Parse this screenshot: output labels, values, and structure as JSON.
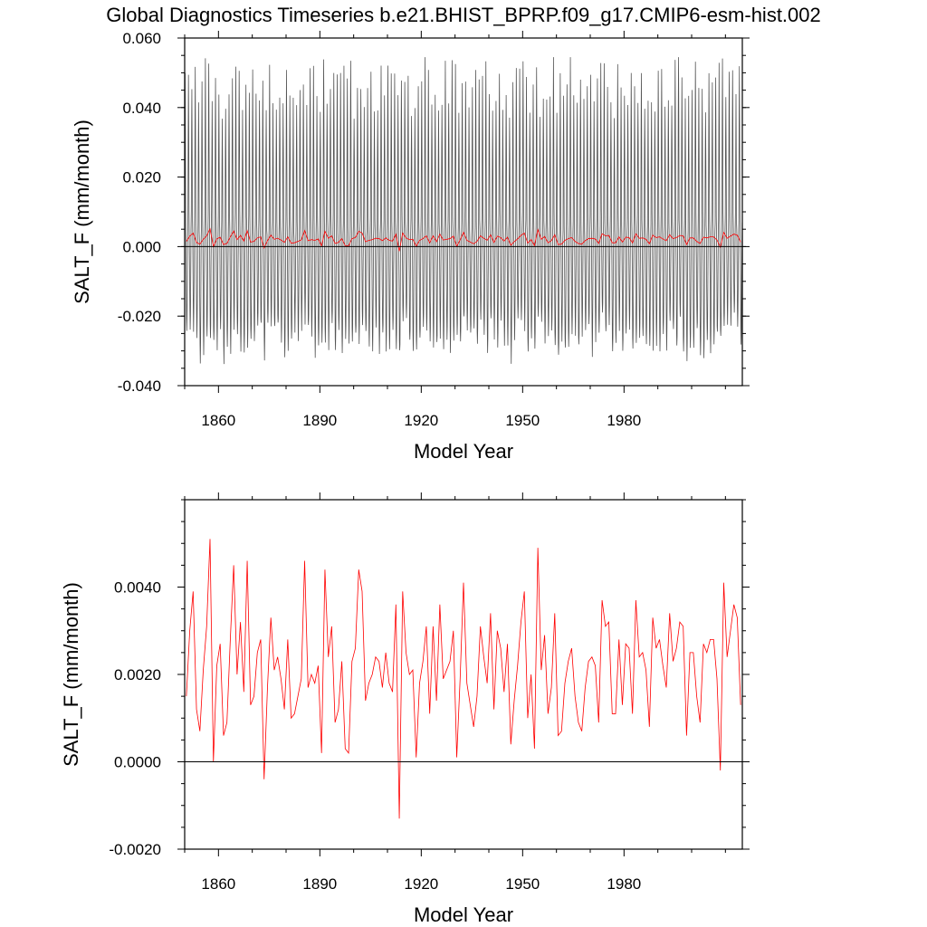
{
  "title": "Global Diagnostics Timeseries b.e21.BHIST_BPRP.f09_g17.CMIP6-esm-hist.002",
  "colors": {
    "monthly": "#555555",
    "annual": "#ff0000",
    "axis": "#000000",
    "zero_line": "#000000"
  },
  "chart_data": [
    {
      "type": "line",
      "name": "monthly-and-annual",
      "title": "Global Diagnostics Timeseries b.e21.BHIST_BPRP.f09_g17.CMIP6-esm-hist.002",
      "xlabel": "Model Year",
      "ylabel": "SALT_F (mm/month)",
      "xlim": [
        1850,
        2015
      ],
      "ylim": [
        -0.04,
        0.06
      ],
      "xticks": [
        1860,
        1890,
        1920,
        1950,
        1980
      ],
      "xtick_labels": [
        "1860",
        "1890",
        "1920",
        "1950",
        "1980"
      ],
      "yticks": [
        -0.04,
        -0.02,
        0.0,
        0.02,
        0.04,
        0.06
      ],
      "ytick_labels": [
        "-0.040",
        "-0.020",
        "0.000",
        "0.020",
        "0.040",
        "0.060"
      ],
      "reference_line": 0,
      "series": [
        {
          "name": "monthly",
          "color": "#555555",
          "description": "monthly means, seasonal cycle approx -0.03 to +0.05"
        },
        {
          "name": "annual",
          "color": "#ff0000",
          "description": "annual means (same as lower panel)"
        }
      ]
    },
    {
      "type": "line",
      "name": "annual-mean",
      "title": "",
      "xlabel": "Model Year",
      "ylabel": "SALT_F (mm/month)",
      "xlim": [
        1850,
        2015
      ],
      "ylim": [
        -0.002,
        0.006
      ],
      "xticks": [
        1860,
        1890,
        1920,
        1950,
        1980
      ],
      "xtick_labels": [
        "1860",
        "1890",
        "1920",
        "1950",
        "1980"
      ],
      "yticks": [
        -0.002,
        0.0,
        0.002,
        0.004
      ],
      "ytick_labels": [
        "-0.0020",
        "0.0000",
        "0.0020",
        "0.0040"
      ],
      "reference_line": 0,
      "series": [
        {
          "name": "annual",
          "color": "#ff0000",
          "x_start": 1850,
          "x_step": 1,
          "values": [
            0.0015,
            0.003,
            0.0039,
            0.0012,
            0.0007,
            0.0021,
            0.0031,
            0.0051,
            0.0,
            0.0022,
            0.0027,
            0.0006,
            0.0009,
            0.0028,
            0.0045,
            0.002,
            0.0032,
            0.0016,
            0.0046,
            0.0013,
            0.0015,
            0.0025,
            0.0028,
            -0.0004,
            0.0017,
            0.0033,
            0.0021,
            0.0024,
            0.0019,
            0.0012,
            0.0028,
            0.001,
            0.0011,
            0.0015,
            0.0019,
            0.0046,
            0.0017,
            0.002,
            0.0018,
            0.0022,
            0.0002,
            0.0044,
            0.0024,
            0.0031,
            0.0009,
            0.0012,
            0.0023,
            0.0003,
            0.0002,
            0.0023,
            0.0026,
            0.0044,
            0.0039,
            0.0014,
            0.0018,
            0.002,
            0.0024,
            0.0023,
            0.0017,
            0.0025,
            0.0018,
            0.0016,
            0.0036,
            -0.0013,
            0.0039,
            0.0025,
            0.002,
            0.0021,
            0.0001,
            0.0018,
            0.0023,
            0.0031,
            0.0011,
            0.0031,
            0.0014,
            0.0036,
            0.0019,
            0.0021,
            0.0023,
            0.003,
            0.0001,
            0.0019,
            0.0041,
            0.0018,
            0.0013,
            0.0008,
            0.0015,
            0.0031,
            0.0024,
            0.0018,
            0.0034,
            0.0012,
            0.003,
            0.0026,
            0.0016,
            0.0027,
            0.0004,
            0.0014,
            0.0022,
            0.0032,
            0.0039,
            0.001,
            0.002,
            0.0003,
            0.0049,
            0.0021,
            0.0029,
            0.0011,
            0.0017,
            0.0034,
            0.0006,
            0.0007,
            0.0018,
            0.0023,
            0.0026,
            0.0015,
            0.0009,
            0.0007,
            0.0017,
            0.0023,
            0.0024,
            0.0022,
            0.0009,
            0.0037,
            0.0031,
            0.0032,
            0.0011,
            0.0011,
            0.0028,
            0.0013,
            0.0027,
            0.0026,
            0.0011,
            0.0037,
            0.0024,
            0.0025,
            0.0021,
            0.0008,
            0.0033,
            0.0026,
            0.0028,
            0.0022,
            0.0017,
            0.0034,
            0.0023,
            0.0026,
            0.0032,
            0.0031,
            0.0006,
            0.0025,
            0.0025,
            0.0015,
            0.0009,
            0.0027,
            0.0025,
            0.0028,
            0.0028,
            0.0019,
            -0.0002,
            0.0041,
            0.0024,
            0.003,
            0.0036,
            0.0033,
            0.0013
          ]
        }
      ]
    }
  ]
}
